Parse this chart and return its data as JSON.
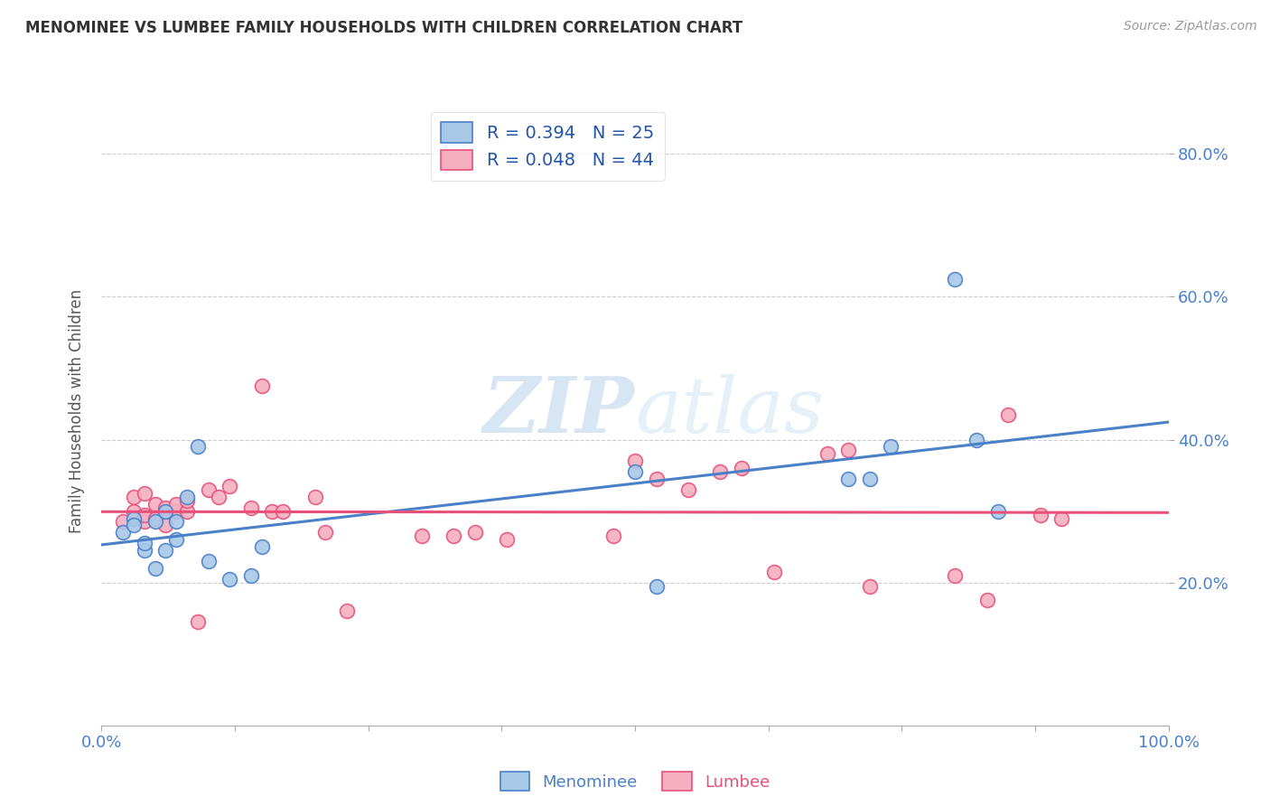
{
  "title": "MENOMINEE VS LUMBEE FAMILY HOUSEHOLDS WITH CHILDREN CORRELATION CHART",
  "source": "Source: ZipAtlas.com",
  "ylabel": "Family Households with Children",
  "xlim": [
    0,
    1.0
  ],
  "ylim": [
    0,
    0.88
  ],
  "grid_color": "#cccccc",
  "background_color": "#ffffff",
  "menominee_color": "#a8c8e8",
  "lumbee_color": "#f4afc0",
  "menominee_line_color": "#4a80c8",
  "lumbee_line_color": "#e8507a",
  "menominee_R": 0.394,
  "menominee_N": 25,
  "lumbee_R": 0.048,
  "lumbee_N": 44,
  "legend_text_color": "#2255aa",
  "watermark_color": "#c8dff0",
  "right_tick_color": "#4a80c8",
  "menominee_x": [
    0.02,
    0.03,
    0.03,
    0.04,
    0.04,
    0.05,
    0.05,
    0.06,
    0.06,
    0.07,
    0.07,
    0.08,
    0.09,
    0.1,
    0.12,
    0.14,
    0.15,
    0.5,
    0.52,
    0.7,
    0.72,
    0.74,
    0.8,
    0.82,
    0.84
  ],
  "menominee_y": [
    0.27,
    0.29,
    0.28,
    0.245,
    0.255,
    0.285,
    0.22,
    0.3,
    0.245,
    0.26,
    0.285,
    0.32,
    0.39,
    0.23,
    0.205,
    0.21,
    0.25,
    0.355,
    0.195,
    0.345,
    0.345,
    0.39,
    0.625,
    0.4,
    0.3
  ],
  "lumbee_x": [
    0.02,
    0.03,
    0.03,
    0.04,
    0.04,
    0.04,
    0.05,
    0.05,
    0.06,
    0.06,
    0.07,
    0.07,
    0.08,
    0.08,
    0.09,
    0.1,
    0.11,
    0.12,
    0.14,
    0.15,
    0.16,
    0.17,
    0.2,
    0.21,
    0.23,
    0.3,
    0.33,
    0.35,
    0.38,
    0.48,
    0.5,
    0.52,
    0.55,
    0.58,
    0.6,
    0.63,
    0.68,
    0.7,
    0.72,
    0.8,
    0.83,
    0.85,
    0.88,
    0.9
  ],
  "lumbee_y": [
    0.285,
    0.3,
    0.32,
    0.285,
    0.295,
    0.325,
    0.29,
    0.31,
    0.305,
    0.28,
    0.3,
    0.31,
    0.3,
    0.315,
    0.145,
    0.33,
    0.32,
    0.335,
    0.305,
    0.475,
    0.3,
    0.3,
    0.32,
    0.27,
    0.16,
    0.265,
    0.265,
    0.27,
    0.26,
    0.265,
    0.37,
    0.345,
    0.33,
    0.355,
    0.36,
    0.215,
    0.38,
    0.385,
    0.195,
    0.21,
    0.175,
    0.435,
    0.295,
    0.29
  ]
}
